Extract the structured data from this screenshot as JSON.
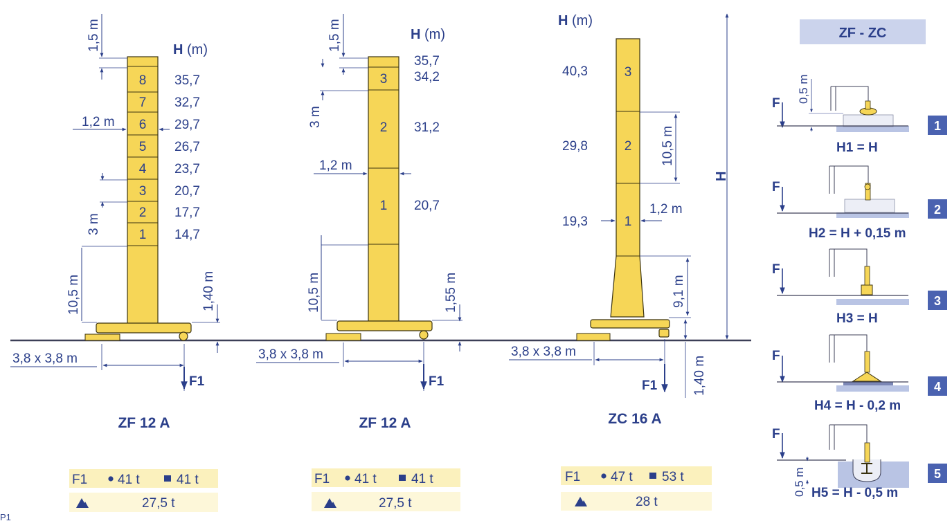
{
  "colors": {
    "yellow_fill": "#f6d657",
    "yellow_outline": "#3a3210",
    "blue_text": "#2b3f8a",
    "dark_line": "#3c3f57",
    "cream_table": "#fbf1bd",
    "cream_table_light": "#fdf7d9",
    "header_band": "#cbd3ec",
    "ground_blue": "#b9c4e4",
    "badge_bg": "#4a62b0"
  },
  "tower1": {
    "model": "ZF 12 A",
    "h_header_bold": "H",
    "h_header_unit": " (m)",
    "top_offset": "1,5 m",
    "sections": [
      "8",
      "7",
      "6",
      "5",
      "4",
      "3",
      "2",
      "1"
    ],
    "heights": [
      "35,7",
      "32,7",
      "29,7",
      "26,7",
      "23,7",
      "20,7",
      "17,7",
      "14,7"
    ],
    "width": "1,2 m",
    "section_height": "3 m",
    "base_height": "10,5 m",
    "chassis_height": "1,40 m",
    "base_size": "3,8 x 3,8 m",
    "force": "F1",
    "loads": {
      "label": "F1",
      "round": "41 t",
      "square": "41 t",
      "total": "27,5 t"
    }
  },
  "tower2": {
    "model": "ZF 12 A",
    "h_header_bold": "H",
    "h_header_unit": " (m)",
    "top_offset": "1,5 m",
    "top_height": "35,7",
    "sections": [
      "3",
      "2",
      "1"
    ],
    "heights": [
      "34,2",
      "31,2",
      "20,7"
    ],
    "width": "1,2 m",
    "section_height": "3 m",
    "base_height": "10,5 m",
    "chassis_height": "1,55 m",
    "base_size": "3,8 x 3,8 m",
    "force": "F1",
    "loads": {
      "label": "F1",
      "round": "41 t",
      "square": "41 t",
      "total": "27,5 t"
    }
  },
  "tower3": {
    "model": "ZC 16 A",
    "h_header_bold": "H",
    "h_header_unit": " (m)",
    "sections": [
      "3",
      "2",
      "1"
    ],
    "heights": [
      "40,3",
      "29,8",
      "19,3"
    ],
    "width": "1,2 m",
    "section_height": "10,5 m",
    "base_height": "9,1 m",
    "chassis_height": "1,40 m",
    "base_size": "3,8 x 3,8 m",
    "force": "F1",
    "total_height": "H",
    "loads": {
      "label": "F1",
      "round": "47 t",
      "square": "53 t",
      "total": "28 t"
    }
  },
  "panel": {
    "title": "ZF - ZC",
    "force": "F",
    "offset_top": "0,5 m",
    "offset_bottom": "0,5 m",
    "configs": [
      {
        "number": "1",
        "formula": "H1 = H"
      },
      {
        "number": "2",
        "formula": "H2 = H + 0,15 m"
      },
      {
        "number": "3",
        "formula": "H3 = H"
      },
      {
        "number": "4",
        "formula": "H4 = H - 0,2 m"
      },
      {
        "number": "5",
        "formula": "H5 = H - 0,5 m"
      }
    ]
  },
  "footer_code": "P1"
}
